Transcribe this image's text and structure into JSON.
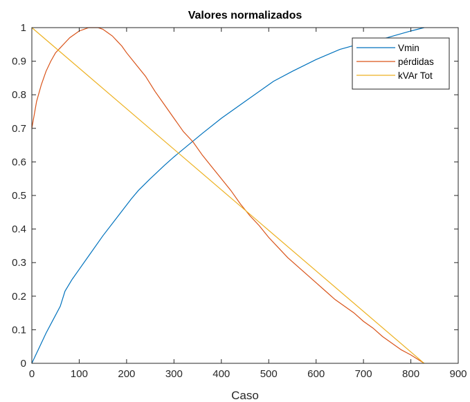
{
  "chart_data": {
    "type": "line",
    "title": "Valores normalizados",
    "xlabel": "Caso",
    "ylabel": "",
    "xlim": [
      0,
      900
    ],
    "ylim": [
      0,
      1
    ],
    "xticks": [
      0,
      100,
      200,
      300,
      400,
      500,
      600,
      700,
      800,
      900
    ],
    "yticks": [
      0,
      0.1,
      0.2,
      0.3,
      0.4,
      0.5,
      0.6,
      0.7,
      0.8,
      0.9,
      1
    ],
    "xtick_labels": [
      "0",
      "100",
      "200",
      "300",
      "400",
      "500",
      "600",
      "700",
      "800",
      "900"
    ],
    "ytick_labels": [
      "0",
      "0.1",
      "0.2",
      "0.3",
      "0.4",
      "0.5",
      "0.6",
      "0.7",
      "0.8",
      "0.9",
      "1"
    ],
    "grid": false,
    "legend_position": "top-right",
    "series": [
      {
        "name": "Vmin",
        "color": "#0072bd",
        "x": [
          0,
          10,
          20,
          30,
          45,
          60,
          70,
          85,
          100,
          120,
          150,
          180,
          210,
          225,
          250,
          280,
          300,
          330,
          360,
          400,
          450,
          500,
          510,
          550,
          600,
          650,
          700,
          750,
          800,
          828
        ],
        "y": [
          0,
          0.03,
          0.06,
          0.09,
          0.13,
          0.17,
          0.215,
          0.25,
          0.28,
          0.32,
          0.38,
          0.435,
          0.49,
          0.515,
          0.55,
          0.59,
          0.615,
          0.65,
          0.685,
          0.73,
          0.78,
          0.83,
          0.84,
          0.87,
          0.905,
          0.935,
          0.955,
          0.97,
          0.99,
          1.0
        ]
      },
      {
        "name": "pérdidas",
        "color": "#d95319",
        "x": [
          0,
          10,
          20,
          30,
          40,
          50,
          60,
          70,
          80,
          90,
          100,
          110,
          120,
          130,
          140,
          150,
          160,
          170,
          180,
          190,
          200,
          220,
          240,
          260,
          280,
          300,
          320,
          340,
          360,
          380,
          400,
          420,
          440,
          460,
          480,
          500,
          520,
          540,
          560,
          580,
          600,
          620,
          640,
          660,
          680,
          700,
          720,
          740,
          760,
          780,
          800,
          828
        ],
        "y": [
          0.7,
          0.78,
          0.83,
          0.87,
          0.9,
          0.925,
          0.94,
          0.955,
          0.97,
          0.98,
          0.99,
          0.995,
          1.0,
          1.0,
          1.0,
          0.995,
          0.985,
          0.975,
          0.96,
          0.945,
          0.925,
          0.89,
          0.855,
          0.81,
          0.77,
          0.73,
          0.69,
          0.66,
          0.62,
          0.585,
          0.55,
          0.515,
          0.475,
          0.44,
          0.41,
          0.375,
          0.345,
          0.315,
          0.29,
          0.265,
          0.24,
          0.215,
          0.19,
          0.17,
          0.15,
          0.125,
          0.105,
          0.08,
          0.06,
          0.04,
          0.025,
          0.0
        ]
      },
      {
        "name": "kVAr Tot",
        "color": "#edb120",
        "x": [
          0,
          828
        ],
        "y": [
          1,
          0
        ]
      }
    ]
  }
}
